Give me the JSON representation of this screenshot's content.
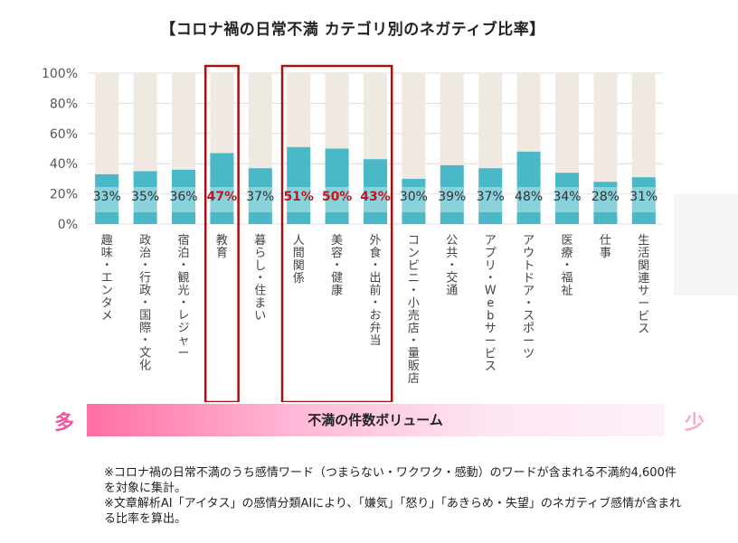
{
  "chart_data": {
    "type": "bar",
    "title": "【コロナ禍の日常不満 カテゴリ別のネガティブ比率】",
    "categories": [
      "趣味・エンタメ",
      "政治・行政・国際・文化",
      "宿泊・観光・レジャー",
      "教育",
      "暮らし・住まい",
      "人間関係",
      "美容・健康",
      "外食・出前・お弁当",
      "コンビニ・小売店・量販店",
      "公共・交通",
      "アプリ・Webサービス",
      "アウトドア・スポーツ",
      "医療・福祉",
      "仕事",
      "生活関連サービス"
    ],
    "values": [
      33,
      35,
      36,
      47,
      37,
      51,
      50,
      43,
      30,
      39,
      37,
      48,
      34,
      28,
      31
    ],
    "value_labels": [
      "33%",
      "35%",
      "36%",
      "47%",
      "37%",
      "51%",
      "50%",
      "43%",
      "30%",
      "39%",
      "37%",
      "48%",
      "34%",
      "28%",
      "31%"
    ],
    "highlighted": [
      3,
      5,
      6,
      7
    ],
    "ylim": [
      0,
      100
    ],
    "yticks": [
      0,
      20,
      40,
      60,
      80,
      100
    ],
    "ytick_labels": [
      "0%",
      "20%",
      "40%",
      "60%",
      "80%",
      "100%"
    ],
    "xlabel": "",
    "ylabel": "",
    "grid": true,
    "colors": {
      "bar": "#4bb8c8",
      "background_bar": "#efe9e2",
      "highlight_text": "#c0161e",
      "highlight_box": "#a31515",
      "label": "#333333"
    }
  },
  "volume_bar": {
    "label": "不満の件数ボリューム",
    "left_label": "多",
    "right_label": "少"
  },
  "footnotes": [
    "※コロナ禍の日常不満のうち感情ワード（つまらない・ワクワク・感動）のワードが含まれる不満約4,600件を対象に集計。",
    "※文章解析AI「アイタス」の感情分類AIにより、「嫌気」「怒り」「あきらめ・失望」のネガティブ感情が含まれる比率を算出。"
  ]
}
